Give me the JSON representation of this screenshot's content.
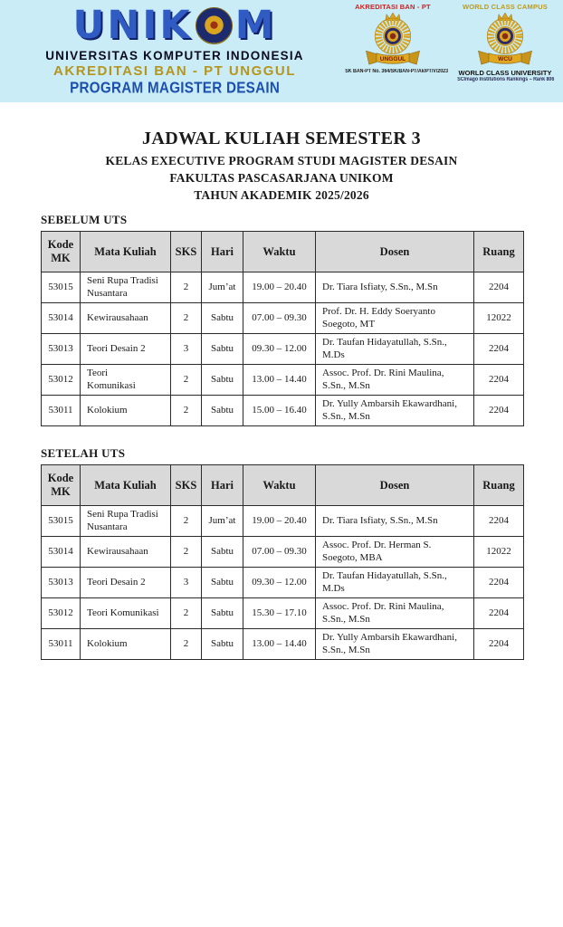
{
  "header": {
    "logo_text_left": "UNIK",
    "logo_text_right": "M",
    "university_name": "UNIVERSITAS KOMPUTER INDONESIA",
    "accreditation_line": "AKREDITASI BAN - PT UNGGUL",
    "program_line": "PROGRAM MAGISTER DESAIN",
    "badge_left": {
      "title": "AKREDITASI BAN - PT",
      "ribbon_label": "UNGGUL",
      "caption": "SK BAN-PT No. 364/SK/BAN-PT/Ak/PT/V/2023"
    },
    "badge_right": {
      "title": "WORLD CLASS CAMPUS",
      "ribbon_label": "WCU",
      "caption_line1": "WORLD CLASS UNIVERSITY",
      "caption_line2": "SCImago Institutions Rankings – Rank 806"
    },
    "icons": {
      "seal": "unikom-seal",
      "badge_emblem": "laurel-wreath-crown",
      "ribbon": "banner-ribbon"
    }
  },
  "title_block": {
    "line1": "JADWAL KULIAH SEMESTER 3",
    "line2": "KELAS EXECUTIVE PROGRAM STUDI MAGISTER DESAIN",
    "line3": "FAKULTAS PASCASARJANA UNIKOM",
    "line4": "TAHUN AKADEMIK 2025/2026"
  },
  "tables": [
    {
      "section_label": "SEBELUM UTS",
      "columns": [
        "Kode MK",
        "Mata Kuliah",
        "SKS",
        "Hari",
        "Waktu",
        "Dosen",
        "Ruang"
      ],
      "rows": [
        [
          "53015",
          "Seni Rupa Tradisi\nNusantara",
          "2",
          "Jum’at",
          "19.00 – 20.40",
          "Dr. Tiara Isfiaty, S.Sn., M.Sn",
          "2204"
        ],
        [
          "53014",
          "Kewirausahaan",
          "2",
          "Sabtu",
          "07.00 – 09.30",
          "Prof. Dr. H. Eddy Soeryanto Soegoto, MT",
          "12022"
        ],
        [
          "53013",
          "Teori Desain 2",
          "3",
          "Sabtu",
          "09.30 – 12.00",
          "Dr. Taufan Hidayatullah, S.Sn., M.Ds",
          "2204"
        ],
        [
          "53012",
          "Teori\nKomunikasi",
          "2",
          "Sabtu",
          "13.00 – 14.40",
          "Assoc. Prof. Dr. Rini Maulina, S.Sn., M.Sn",
          "2204"
        ],
        [
          "53011",
          "Kolokium",
          "2",
          "Sabtu",
          "15.00 – 16.40",
          "Dr. Yully Ambarsih Ekawardhani, S.Sn., M.Sn",
          "2204"
        ]
      ]
    },
    {
      "section_label": "SETELAH UTS",
      "columns": [
        "Kode MK",
        "Mata Kuliah",
        "SKS",
        "Hari",
        "Waktu",
        "Dosen",
        "Ruang"
      ],
      "rows": [
        [
          "53015",
          "Seni Rupa Tradisi\nNusantara",
          "2",
          "Jum’at",
          "19.00 – 20.40",
          "Dr. Tiara Isfiaty, S.Sn., M.Sn",
          "2204"
        ],
        [
          "53014",
          "Kewirausahaan",
          "2",
          "Sabtu",
          "07.00 – 09.30",
          "Assoc. Prof. Dr. Herman S. Soegoto, MBA",
          "12022"
        ],
        [
          "53013",
          "Teori Desain 2",
          "3",
          "Sabtu",
          "09.30 – 12.00",
          "Dr. Taufan Hidayatullah, S.Sn., M.Ds",
          "2204"
        ],
        [
          "53012",
          "Teori Komunikasi",
          "2",
          "Sabtu",
          "15.30 – 17.10",
          "Assoc. Prof. Dr. Rini Maulina, S.Sn., M.Sn",
          "2204"
        ],
        [
          "53011",
          "Kolokium",
          "2",
          "Sabtu",
          "13.00 – 14.40",
          "Dr. Yully Ambarsih Ekawardhani, S.Sn., M.Sn",
          "2204"
        ]
      ]
    }
  ],
  "colors": {
    "header_background": "#c9ecf6",
    "logo_blue": "#2f5bc2",
    "accreditation_gold": "#b6951d",
    "program_blue": "#1d4fae",
    "badge_title_red": "#cf1f1f",
    "badge_title_gold": "#c09a18",
    "emblem_gold": "#d9a520",
    "table_header_bg": "#d9d9d9"
  }
}
